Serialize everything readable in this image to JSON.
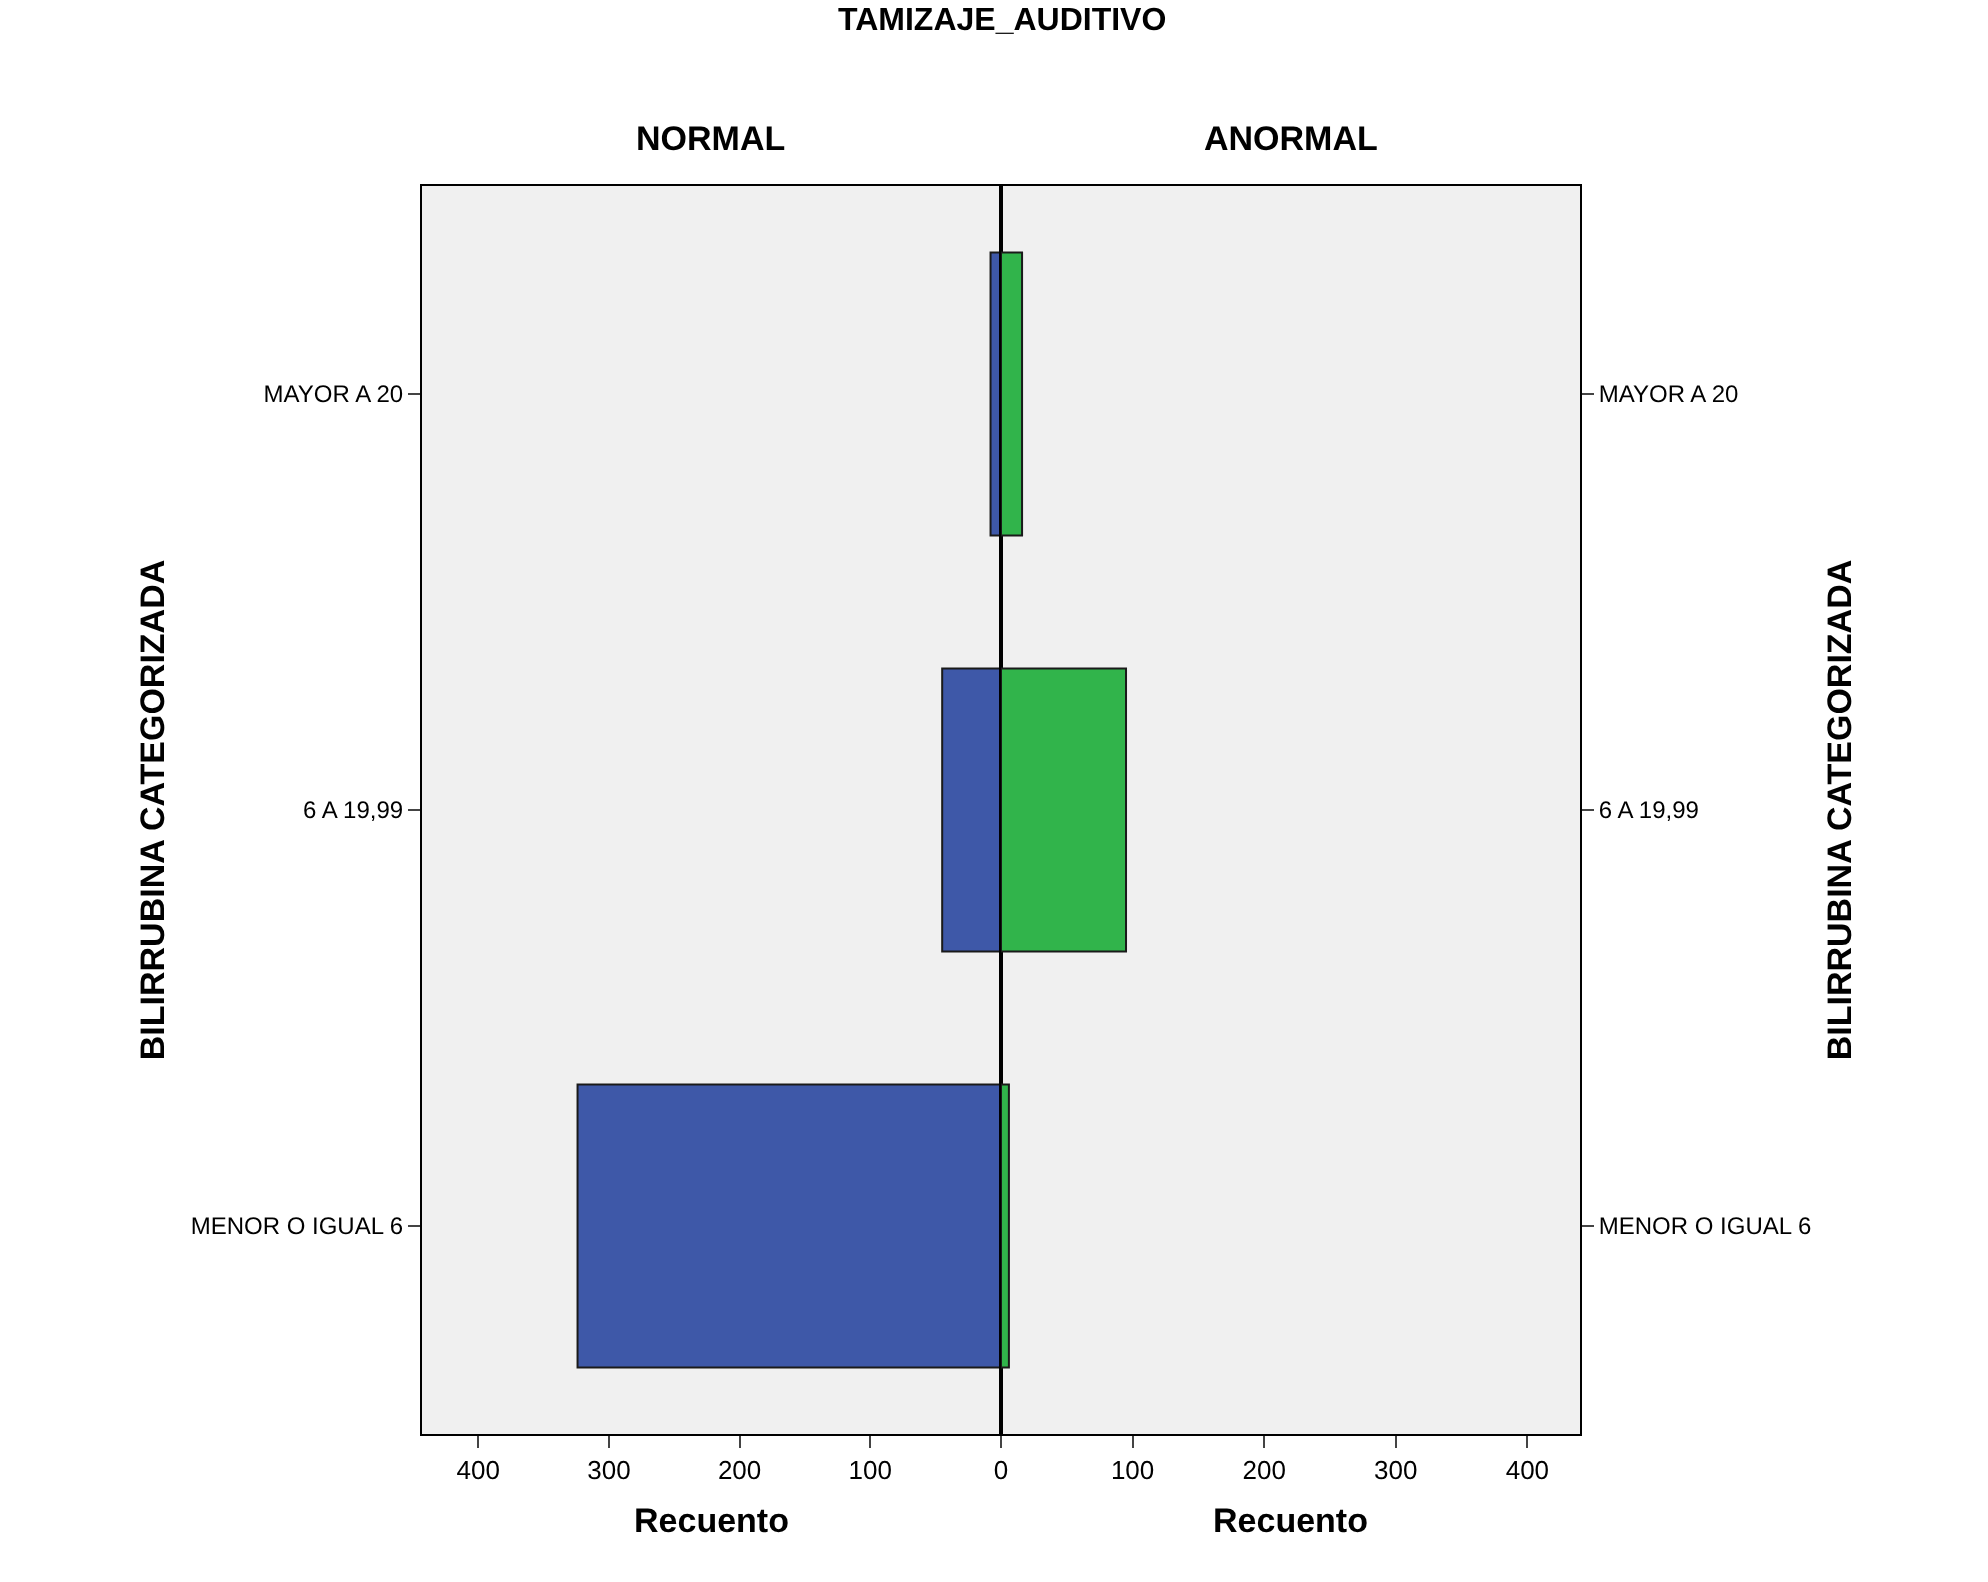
{
  "chart_data": [
    {
      "type": "bar",
      "orientation": "horizontal",
      "title": "TAMIZAJE_AUDITIVO",
      "subtitle": "NORMAL",
      "xlabel": "Recuento",
      "ylabel": "BILIRRUBINA CATEGORIZADA",
      "categories": [
        "MAYOR A 20",
        "6 A 19,99",
        "MENOR O IGUAL 6"
      ],
      "series": [
        {
          "color": "#3e58a8",
          "values": [
            8,
            45,
            324
          ]
        }
      ],
      "xlim": [
        443,
        0
      ],
      "xticks": [
        400,
        300,
        200,
        100,
        0
      ],
      "grid": false
    },
    {
      "type": "bar",
      "orientation": "horizontal",
      "subtitle": "ANORMAL",
      "xlabel": "Recuento",
      "ylabel": "BILIRRUBINA CATEGORIZADA",
      "categories": [
        "MAYOR A 20",
        "6 A 19,99",
        "MENOR O IGUAL 6"
      ],
      "series": [
        {
          "color": "#31b44b",
          "values": [
            16,
            95,
            6
          ]
        }
      ],
      "xlim": [
        0,
        440
      ],
      "xticks": [
        {
          "value": 0,
          "label": null
        },
        100,
        200,
        300,
        400
      ],
      "grid": false
    }
  ]
}
